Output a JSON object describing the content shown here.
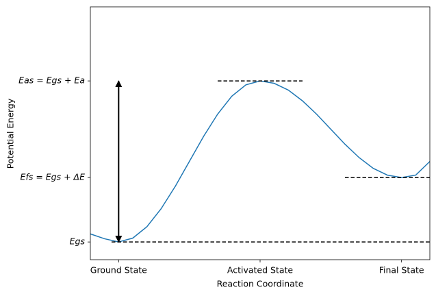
{
  "chart_data": {
    "type": "line",
    "xlabel": "Reaction Coordinate",
    "ylabel": "Potential Energy",
    "x": [
      -0.2,
      -0.1,
      0,
      0.1,
      0.2,
      0.3,
      0.4,
      0.5,
      0.6,
      0.7,
      0.8,
      0.9,
      1.0,
      1.1,
      1.2,
      1.3,
      1.4,
      1.5,
      1.6,
      1.7,
      1.8,
      1.9,
      2.0,
      2.1,
      2.2
    ],
    "series": [
      {
        "color": "#1f77b4",
        "values": [
          0.05,
          0.02,
          0,
          0.024,
          0.095,
          0.206,
          0.345,
          0.5,
          0.655,
          0.794,
          0.905,
          0.976,
          1,
          0.985,
          0.943,
          0.876,
          0.793,
          0.7,
          0.607,
          0.524,
          0.457,
          0.415,
          0.4,
          0.415,
          0.5
        ]
      }
    ],
    "xlim": [
      -0.2,
      2.2
    ],
    "ylim": [
      -0.11,
      1.46
    ],
    "xticks": [
      {
        "value": 0,
        "label": "Ground State"
      },
      {
        "value": 1,
        "label": "Activated State"
      },
      {
        "value": 2,
        "label": "Final State"
      }
    ],
    "yticks": [
      {
        "value": 0,
        "label": "Egs"
      },
      {
        "value": 0.4,
        "label": "Efs = Egs + ΔE"
      },
      {
        "value": 1,
        "label": "Eas = Egs + Ea"
      }
    ],
    "hlines": [
      {
        "y": 0,
        "x": [
          -0.05,
          2.2
        ]
      },
      {
        "y": 1,
        "x": [
          0.7,
          1.3
        ]
      },
      {
        "y": 0.4,
        "x": [
          1.6,
          2.2
        ]
      }
    ],
    "arrow": {
      "x": 0,
      "y": [
        0,
        1
      ]
    }
  }
}
